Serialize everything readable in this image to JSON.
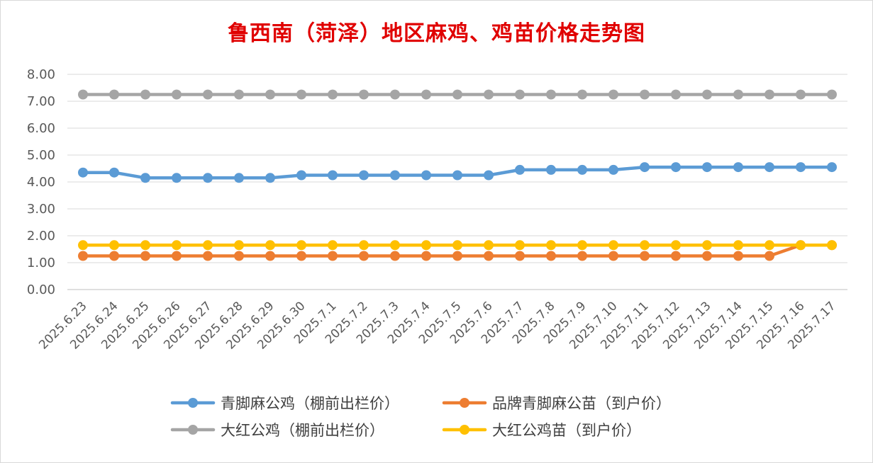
{
  "chart_data": {
    "type": "line",
    "title": "鲁西南（菏泽）地区麻鸡、鸡苗价格走势图",
    "xlabel": "",
    "ylabel": "",
    "ylim": [
      0,
      8
    ],
    "ytick_labels": [
      "0.00",
      "1.00",
      "2.00",
      "3.00",
      "4.00",
      "5.00",
      "6.00",
      "7.00",
      "8.00"
    ],
    "grid": true,
    "legend_position": "bottom",
    "categories": [
      "2025.6.23",
      "2025.6.24",
      "2025.6.25",
      "2025.6.26",
      "2025.6.27",
      "2025.6.28",
      "2025.6.29",
      "2025.6.30",
      "2025.7.1",
      "2025.7.2",
      "2025.7.3",
      "2025.7.4",
      "2025.7.5",
      "2025.7.6",
      "2025.7.7",
      "2025.7.8",
      "2025.7.9",
      "2025.7.10",
      "2025.7.11",
      "2025.7.12",
      "2025.7.13",
      "2025.7.14",
      "2025.7.15",
      "2025.7.16",
      "2025.7.17"
    ],
    "series": [
      {
        "name": "青脚麻公鸡（棚前出栏价）",
        "color": "#5b9bd5",
        "values": [
          4.35,
          4.35,
          4.15,
          4.15,
          4.15,
          4.15,
          4.15,
          4.25,
          4.25,
          4.25,
          4.25,
          4.25,
          4.25,
          4.25,
          4.45,
          4.45,
          4.45,
          4.45,
          4.55,
          4.55,
          4.55,
          4.55,
          4.55,
          4.55,
          4.55
        ]
      },
      {
        "name": "品牌青脚麻公苗（到户价）",
        "color": "#ed7d31",
        "values": [
          1.25,
          1.25,
          1.25,
          1.25,
          1.25,
          1.25,
          1.25,
          1.25,
          1.25,
          1.25,
          1.25,
          1.25,
          1.25,
          1.25,
          1.25,
          1.25,
          1.25,
          1.25,
          1.25,
          1.25,
          1.25,
          1.25,
          1.25,
          1.65,
          1.65
        ]
      },
      {
        "name": "大红公鸡（棚前出栏价）",
        "color": "#a5a5a5",
        "values": [
          7.25,
          7.25,
          7.25,
          7.25,
          7.25,
          7.25,
          7.25,
          7.25,
          7.25,
          7.25,
          7.25,
          7.25,
          7.25,
          7.25,
          7.25,
          7.25,
          7.25,
          7.25,
          7.25,
          7.25,
          7.25,
          7.25,
          7.25,
          7.25,
          7.25
        ]
      },
      {
        "name": "大红公鸡苗（到户价）",
        "color": "#ffc000",
        "values": [
          1.65,
          1.65,
          1.65,
          1.65,
          1.65,
          1.65,
          1.65,
          1.65,
          1.65,
          1.65,
          1.65,
          1.65,
          1.65,
          1.65,
          1.65,
          1.65,
          1.65,
          1.65,
          1.65,
          1.65,
          1.65,
          1.65,
          1.65,
          1.65,
          1.65
        ]
      }
    ],
    "draw_order": [
      2,
      0,
      1,
      3
    ]
  }
}
